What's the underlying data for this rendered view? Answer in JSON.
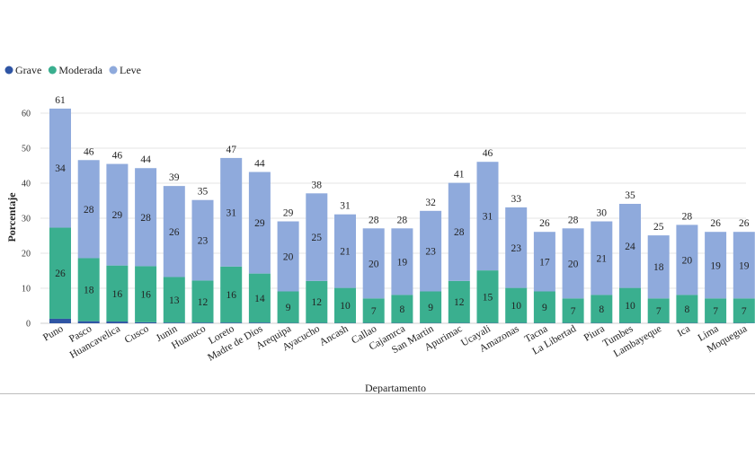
{
  "chart_data": {
    "type": "bar",
    "stacked": true,
    "title": "",
    "xlabel": "Departamento",
    "ylabel": "Porcentaje",
    "ylim": [
      0,
      60
    ],
    "yticks": [
      0,
      10,
      20,
      30,
      40,
      50,
      60
    ],
    "grid": "horizontal",
    "legend_position": "top-left",
    "categories": [
      "Puno",
      "Pasco",
      "Huancavelica",
      "Cusco",
      "Junin",
      "Huanuco",
      "Loreto",
      "Madre de Dios",
      "Arequipa",
      "Ayacucho",
      "Ancash",
      "Callao",
      "Cajamrca",
      "San Martin",
      "Apurimac",
      "Ucayali",
      "Amazonas",
      "Tacna",
      "La Libertad",
      "Piura",
      "Tumbes",
      "Lambayeque",
      "Ica",
      "Lima",
      "Moquegua"
    ],
    "series": [
      {
        "name": "Grave",
        "color": "#2f55a4",
        "values": [
          1.3,
          0.6,
          0.5,
          0.3,
          0.2,
          0.2,
          0.2,
          0.2,
          0.1,
          0.1,
          0.1,
          0.1,
          0.1,
          0.1,
          0.1,
          0.1,
          0.1,
          0.1,
          0.1,
          0.1,
          0.1,
          0.1,
          0.1,
          0.1,
          0.1
        ],
        "labels": [
          "",
          "",
          "",
          "",
          "",
          "",
          "",
          "",
          "",
          "",
          "",
          "",
          "",
          "",
          "",
          "",
          "",
          "",
          "",
          "",
          "",
          "",
          "",
          "",
          ""
        ]
      },
      {
        "name": "Moderada",
        "color": "#3aaf8f",
        "values": [
          26,
          18,
          16,
          16,
          13,
          12,
          16,
          14,
          9,
          12,
          10,
          7,
          8,
          9,
          12,
          15,
          10,
          9,
          7,
          8,
          10,
          7,
          8,
          7,
          7
        ],
        "labels": [
          "26",
          "18",
          "16",
          "16",
          "13",
          "12",
          "16",
          "14",
          "9",
          "12",
          "10",
          "7",
          "8",
          "9",
          "12",
          "15",
          "10",
          "9",
          "7",
          "8",
          "10",
          "7",
          "8",
          "7",
          "7"
        ]
      },
      {
        "name": "Leve",
        "color": "#8faadc",
        "values": [
          34,
          28,
          29,
          28,
          26,
          23,
          31,
          29,
          20,
          25,
          21,
          20,
          19,
          23,
          28,
          31,
          23,
          17,
          20,
          21,
          24,
          18,
          20,
          19,
          19
        ],
        "labels": [
          "34",
          "28",
          "29",
          "28",
          "26",
          "23",
          "31",
          "29",
          "20",
          "25",
          "21",
          "20",
          "19",
          "23",
          "28",
          "31",
          "23",
          "17",
          "20",
          "21",
          "24",
          "18",
          "20",
          "19",
          "19"
        ]
      }
    ],
    "totals": [
      61,
      46,
      46,
      44,
      39,
      35,
      47,
      44,
      29,
      38,
      31,
      28,
      28,
      32,
      41,
      46,
      33,
      26,
      28,
      30,
      35,
      25,
      28,
      26,
      26
    ]
  }
}
